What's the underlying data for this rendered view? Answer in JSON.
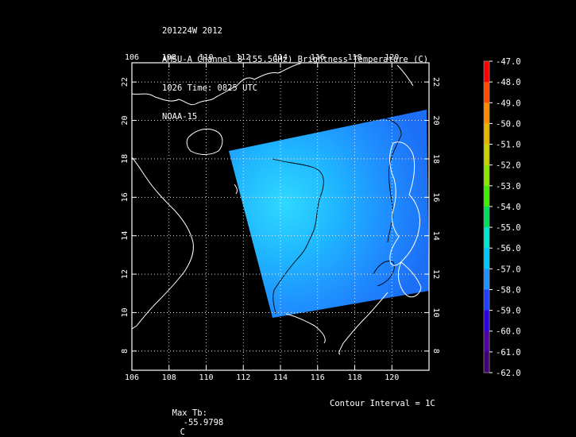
{
  "header": {
    "line1": "201224W 2012",
    "line2": "AMSU-A Channel 8 (55.5GHz) Brightness Temperature (C)",
    "line3": "1026 Time: 0825 UTC",
    "line4": "NOAA-15"
  },
  "map": {
    "lon_ticks": [
      "106",
      "108",
      "110",
      "112",
      "114",
      "116",
      "118",
      "120"
    ],
    "lat_ticks": [
      "22",
      "20",
      "18",
      "16",
      "14",
      "12",
      "10",
      "8"
    ],
    "lon_range": [
      106,
      122
    ],
    "lat_range": [
      7,
      23
    ],
    "grid": true,
    "colors": {
      "frame": "#ffffff",
      "coast": "#ffffff",
      "contour": "#000000"
    }
  },
  "colorbar": {
    "labels": [
      "-47.0",
      "-48.0",
      "-49.0",
      "-50.0",
      "-51.0",
      "-52.0",
      "-53.0",
      "-54.0",
      "-55.0",
      "-56.0",
      "-57.0",
      "-58.0",
      "-59.0",
      "-60.0",
      "-61.0",
      "-62.0"
    ],
    "colors": [
      "#ff0000",
      "#ff4a00",
      "#ff8c00",
      "#e6b400",
      "#c8d200",
      "#8ce600",
      "#40f000",
      "#00e060",
      "#00e8d0",
      "#00c8ff",
      "#1e90ff",
      "#2040ff",
      "#3000e0",
      "#5000a0",
      "#400070",
      "#200020"
    ]
  },
  "footer": {
    "max_label": "Max Tb:",
    "max_value": "-55.9798",
    "max_unit": "C",
    "contour_label": "Contour Interval = 1C"
  }
}
